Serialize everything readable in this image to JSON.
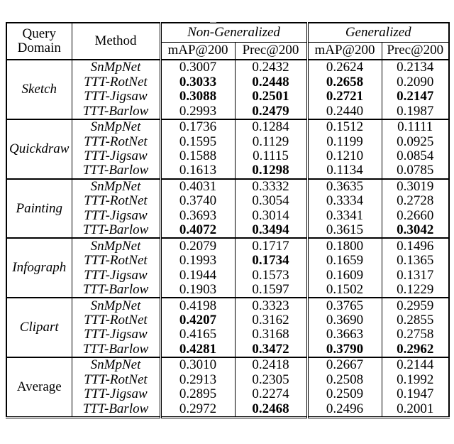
{
  "page": {
    "background_color": "#ffffff",
    "text_color": "#000000",
    "border_color": "#000000"
  },
  "table": {
    "header": {
      "query_domain_line1": "Query",
      "query_domain_line2": "Domain",
      "method": "Method",
      "groups": [
        {
          "label": "Non-Generalized",
          "subcols": [
            "mAP@200",
            "Prec@200"
          ]
        },
        {
          "label": "Generalized",
          "subcols": [
            "mAP@200",
            "Prec@200"
          ]
        }
      ]
    },
    "groups": [
      {
        "domain": "Sketch",
        "italic": true,
        "rows": [
          {
            "method": "SnMpNet",
            "values": [
              "0.3007",
              "0.2432",
              "0.2624",
              "0.2134"
            ],
            "bold": [
              false,
              false,
              false,
              false
            ]
          },
          {
            "method": "TTT-RotNet",
            "values": [
              "0.3033",
              "0.2448",
              "0.2658",
              "0.2090"
            ],
            "bold": [
              true,
              true,
              true,
              false
            ]
          },
          {
            "method": "TTT-Jigsaw",
            "values": [
              "0.3088",
              "0.2501",
              "0.2721",
              "0.2147"
            ],
            "bold": [
              true,
              true,
              true,
              true
            ]
          },
          {
            "method": "TTT-Barlow",
            "values": [
              "0.2993",
              "0.2479",
              "0.2440",
              "0.1987"
            ],
            "bold": [
              false,
              true,
              false,
              false
            ]
          }
        ]
      },
      {
        "domain": "Quickdraw",
        "italic": true,
        "rows": [
          {
            "method": "SnMpNet",
            "values": [
              "0.1736",
              "0.1284",
              "0.1512",
              "0.1111"
            ],
            "bold": [
              false,
              false,
              false,
              false
            ]
          },
          {
            "method": "TTT-RotNet",
            "values": [
              "0.1595",
              "0.1129",
              "0.1199",
              "0.0925"
            ],
            "bold": [
              false,
              false,
              false,
              false
            ]
          },
          {
            "method": "TTT-Jigsaw",
            "values": [
              "0.1588",
              "0.1115",
              "0.1210",
              "0.0854"
            ],
            "bold": [
              false,
              false,
              false,
              false
            ]
          },
          {
            "method": "TTT-Barlow",
            "values": [
              "0.1613",
              "0.1298",
              "0.1134",
              "0.0785"
            ],
            "bold": [
              false,
              true,
              false,
              false
            ]
          }
        ]
      },
      {
        "domain": "Painting",
        "italic": true,
        "rows": [
          {
            "method": "SnMpNet",
            "values": [
              "0.4031",
              "0.3332",
              "0.3635",
              "0.3019"
            ],
            "bold": [
              false,
              false,
              false,
              false
            ]
          },
          {
            "method": "TTT-RotNet",
            "values": [
              "0.3740",
              "0.3054",
              "0.3334",
              "0.2728"
            ],
            "bold": [
              false,
              false,
              false,
              false
            ]
          },
          {
            "method": "TTT-Jigsaw",
            "values": [
              "0.3693",
              "0.3014",
              "0.3341",
              "0.2660"
            ],
            "bold": [
              false,
              false,
              false,
              false
            ]
          },
          {
            "method": "TTT-Barlow",
            "values": [
              "0.4072",
              "0.3494",
              "0.3615",
              "0.3042"
            ],
            "bold": [
              true,
              true,
              false,
              true
            ]
          }
        ]
      },
      {
        "domain": "Infograph",
        "italic": true,
        "rows": [
          {
            "method": "SnMpNet",
            "values": [
              "0.2079",
              "0.1717",
              "0.1800",
              "0.1496"
            ],
            "bold": [
              false,
              false,
              false,
              false
            ]
          },
          {
            "method": "TTT-RotNet",
            "values": [
              "0.1993",
              "0.1734",
              "0.1659",
              "0.1365"
            ],
            "bold": [
              false,
              true,
              false,
              false
            ]
          },
          {
            "method": "TTT-Jigsaw",
            "values": [
              "0.1944",
              "0.1573",
              "0.1609",
              "0.1317"
            ],
            "bold": [
              false,
              false,
              false,
              false
            ]
          },
          {
            "method": "TTT-Barlow",
            "values": [
              "0.1903",
              "0.1597",
              "0.1502",
              "0.1229"
            ],
            "bold": [
              false,
              false,
              false,
              false
            ]
          }
        ]
      },
      {
        "domain": "Clipart",
        "italic": true,
        "rows": [
          {
            "method": "SnMpNet",
            "values": [
              "0.4198",
              "0.3323",
              "0.3765",
              "0.2959"
            ],
            "bold": [
              false,
              false,
              false,
              false
            ]
          },
          {
            "method": "TTT-RotNet",
            "values": [
              "0.4207",
              "0.3162",
              "0.3690",
              "0.2855"
            ],
            "bold": [
              true,
              false,
              false,
              false
            ]
          },
          {
            "method": "TTT-Jigsaw",
            "values": [
              "0.4165",
              "0.3168",
              "0.3663",
              "0.2758"
            ],
            "bold": [
              false,
              false,
              false,
              false
            ]
          },
          {
            "method": "TTT-Barlow",
            "values": [
              "0.4281",
              "0.3472",
              "0.3790",
              "0.2962"
            ],
            "bold": [
              true,
              true,
              true,
              true
            ]
          }
        ]
      },
      {
        "domain": "Average",
        "italic": false,
        "rows": [
          {
            "method": "SnMpNet",
            "values": [
              "0.3010",
              "0.2418",
              "0.2667",
              "0.2144"
            ],
            "bold": [
              false,
              false,
              false,
              false
            ]
          },
          {
            "method": "TTT-RotNet",
            "values": [
              "0.2913",
              "0.2305",
              "0.2508",
              "0.1992"
            ],
            "bold": [
              false,
              false,
              false,
              false
            ]
          },
          {
            "method": "TTT-Jigsaw",
            "values": [
              "0.2895",
              "0.2274",
              "0.2509",
              "0.1947"
            ],
            "bold": [
              false,
              false,
              false,
              false
            ]
          },
          {
            "method": "TTT-Barlow",
            "values": [
              "0.2972",
              "0.2468",
              "0.2496",
              "0.2001"
            ],
            "bold": [
              false,
              true,
              false,
              false
            ]
          }
        ]
      }
    ]
  }
}
